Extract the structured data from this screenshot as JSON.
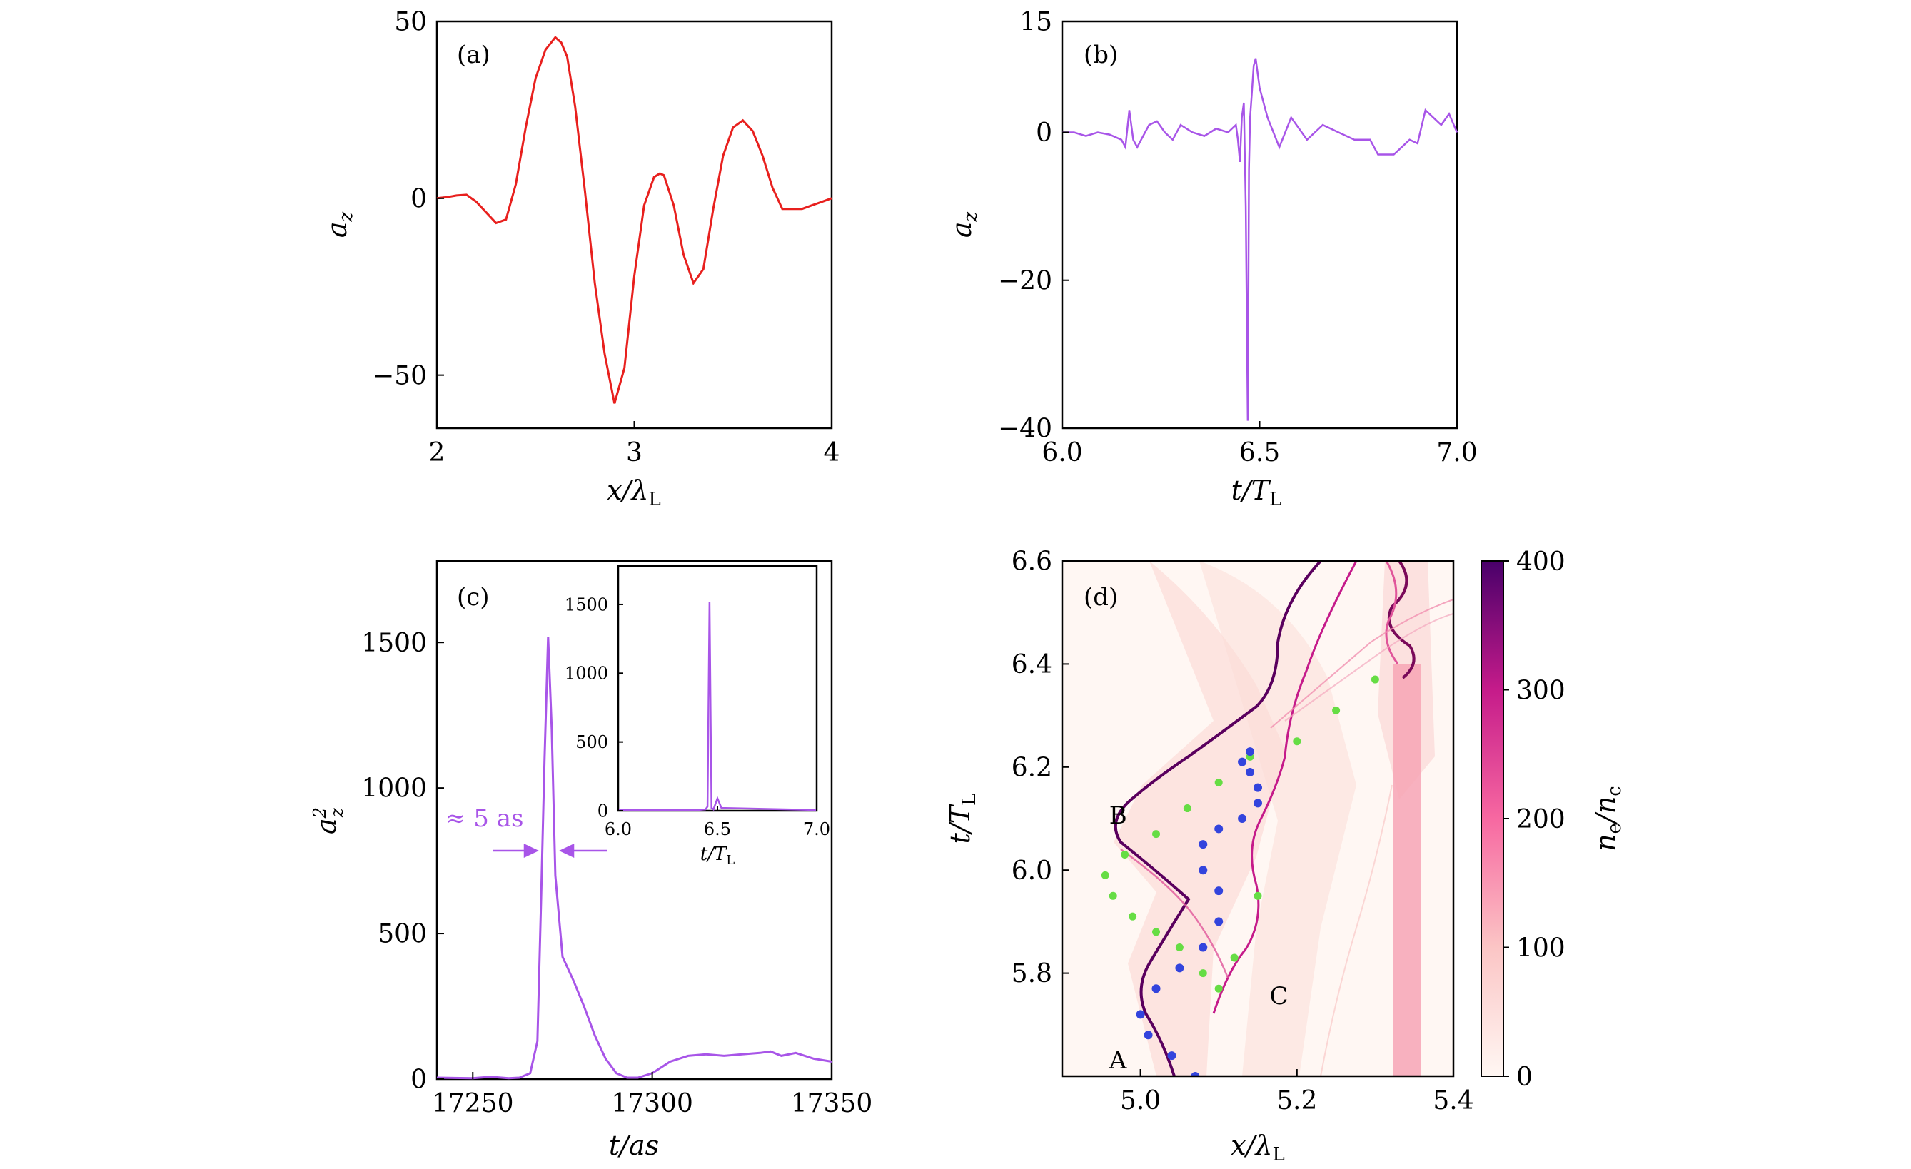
{
  "figure": {
    "panels": [
      "(a)",
      "(b)",
      "(c)",
      "(d)"
    ]
  },
  "chart_data": [
    {
      "type": "line",
      "panel": "(a)",
      "xlabel": "x/λ_L",
      "ylabel": "a_z",
      "xlim": [
        2,
        4
      ],
      "ylim": [
        -65,
        50
      ],
      "xticks": [
        "2",
        "3",
        "4"
      ],
      "yticks": [
        "50",
        "0",
        "−50"
      ],
      "color": "#e8201e",
      "series": [
        {
          "x": [
            2.0,
            2.05,
            2.1,
            2.15,
            2.2,
            2.25,
            2.3,
            2.35,
            2.4,
            2.45,
            2.5,
            2.55,
            2.6,
            2.63,
            2.66,
            2.7,
            2.75,
            2.8,
            2.85,
            2.9,
            2.95,
            3.0,
            3.05,
            3.1,
            3.13,
            3.15,
            3.2,
            3.25,
            3.3,
            3.35,
            3.4,
            3.45,
            3.5,
            3.55,
            3.6,
            3.65,
            3.7,
            3.75,
            3.8,
            3.85,
            3.9,
            3.95,
            4.0
          ],
          "y": [
            0,
            0.3,
            0.8,
            1,
            -1,
            -4,
            -7,
            -6,
            4,
            20,
            34,
            42,
            45.5,
            44,
            40,
            26,
            2,
            -24,
            -44,
            -58,
            -48,
            -22,
            -2,
            6,
            7,
            6.5,
            -2,
            -16,
            -24,
            -20,
            -3,
            12,
            20,
            22,
            19,
            12,
            3,
            -3,
            -3,
            -3,
            -2,
            -1,
            0
          ]
        }
      ]
    },
    {
      "type": "line",
      "panel": "(b)",
      "xlabel": "t/T_L",
      "ylabel": "a_z",
      "xlim": [
        6.0,
        7.0
      ],
      "ylim": [
        -40,
        15
      ],
      "xticks": [
        "6.0",
        "6.5",
        "7.0"
      ],
      "yticks": [
        "15",
        "0",
        "−20",
        "−40"
      ],
      "color": "#a855e8",
      "series": [
        {
          "x": [
            6.0,
            6.03,
            6.06,
            6.09,
            6.12,
            6.15,
            6.16,
            6.17,
            6.18,
            6.19,
            6.2,
            6.22,
            6.24,
            6.26,
            6.28,
            6.3,
            6.33,
            6.36,
            6.39,
            6.42,
            6.44,
            6.445,
            6.45,
            6.455,
            6.46,
            6.465,
            6.47,
            6.473,
            6.476,
            6.48,
            6.485,
            6.49,
            6.5,
            6.52,
            6.55,
            6.58,
            6.62,
            6.66,
            6.7,
            6.74,
            6.78,
            6.8,
            6.82,
            6.84,
            6.86,
            6.88,
            6.9,
            6.92,
            6.94,
            6.96,
            6.98,
            7.0
          ],
          "y": [
            0,
            0,
            -0.5,
            0,
            -0.3,
            -1,
            -2,
            3,
            -1,
            -2,
            -1,
            1,
            1.5,
            0,
            -1,
            1,
            0,
            -0.5,
            0.5,
            0,
            1,
            -1,
            -4,
            2,
            4,
            -10,
            -39,
            -5,
            2,
            5,
            9,
            10,
            6,
            2,
            -2,
            2,
            -1,
            1,
            0,
            -1,
            -1,
            -3,
            -3,
            -3,
            -2,
            -1,
            -1.5,
            3,
            2,
            1,
            2.5,
            0
          ]
        }
      ]
    },
    {
      "type": "line",
      "panel": "(c)",
      "xlabel": "t/as",
      "ylabel": "a_z^2",
      "xlim": [
        17240,
        17350
      ],
      "ylim": [
        0,
        1780
      ],
      "xticks": [
        "17250",
        "17300",
        "17350"
      ],
      "yticks": [
        "0",
        "500",
        "1000",
        "1500"
      ],
      "color": "#a855e8",
      "annotations": [
        "≈ 5 as"
      ],
      "series": [
        {
          "x": [
            17240,
            17250,
            17255,
            17258,
            17260,
            17263,
            17266,
            17268,
            17269,
            17270,
            17271,
            17272,
            17273,
            17275,
            17278,
            17281,
            17284,
            17287,
            17290,
            17293,
            17296,
            17300,
            17305,
            17310,
            17315,
            17320,
            17325,
            17330,
            17333,
            17336,
            17340,
            17345,
            17350
          ],
          "y": [
            5,
            3,
            8,
            5,
            3,
            5,
            20,
            130,
            600,
            1100,
            1520,
            1200,
            700,
            420,
            340,
            250,
            150,
            70,
            20,
            5,
            5,
            20,
            60,
            80,
            85,
            80,
            85,
            90,
            95,
            80,
            90,
            70,
            60
          ]
        }
      ],
      "inset": {
        "xlabel": "t/T_L",
        "xlim": [
          6.0,
          7.0
        ],
        "ylim": [
          0,
          1780
        ],
        "xticks": [
          "6.0",
          "6.5",
          "7.0"
        ],
        "yticks": [
          "0",
          "500",
          "1000",
          "1500"
        ],
        "x": [
          6.0,
          6.4,
          6.44,
          6.45,
          6.46,
          6.47,
          6.48,
          6.5,
          6.52,
          7.0
        ],
        "y": [
          5,
          5,
          10,
          30,
          1520,
          20,
          10,
          90,
          20,
          5
        ]
      }
    },
    {
      "type": "heatmap",
      "panel": "(d)",
      "xlabel": "x/λ_L",
      "ylabel": "t/T_L",
      "xlim": [
        4.9,
        5.4
      ],
      "ylim": [
        5.6,
        6.6
      ],
      "xticks": [
        "5.0",
        "5.2",
        "5.4"
      ],
      "yticks": [
        "5.8",
        "6.0",
        "6.2",
        "6.4",
        "6.6"
      ],
      "colorbar": {
        "label": "n_e/n_c",
        "range": [
          0,
          400
        ],
        "ticks": [
          "0",
          "100",
          "200",
          "300",
          "400"
        ]
      },
      "point_labels": [
        "A",
        "B",
        "C"
      ],
      "green_dots": {
        "x": [
          5.14,
          5.1,
          5.06,
          5.02,
          4.98,
          4.955,
          4.965,
          4.99,
          5.02,
          5.05,
          5.08,
          5.1,
          5.12,
          5.15,
          5.2,
          5.25,
          5.3
        ],
        "y": [
          6.22,
          6.17,
          6.12,
          6.07,
          6.03,
          5.99,
          5.95,
          5.91,
          5.88,
          5.85,
          5.8,
          5.77,
          5.83,
          5.95,
          6.25,
          6.31,
          6.37
        ]
      },
      "blue_dots": {
        "x": [
          5.07,
          5.04,
          5.01,
          5.0,
          5.02,
          5.05,
          5.08,
          5.1,
          5.1,
          5.08,
          5.08,
          5.1,
          5.13,
          5.15,
          5.15,
          5.14,
          5.13,
          5.14
        ],
        "y": [
          5.6,
          5.64,
          5.68,
          5.72,
          5.77,
          5.81,
          5.85,
          5.9,
          5.96,
          6.0,
          6.05,
          6.08,
          6.1,
          6.13,
          6.16,
          6.19,
          6.21,
          6.23
        ]
      }
    }
  ]
}
